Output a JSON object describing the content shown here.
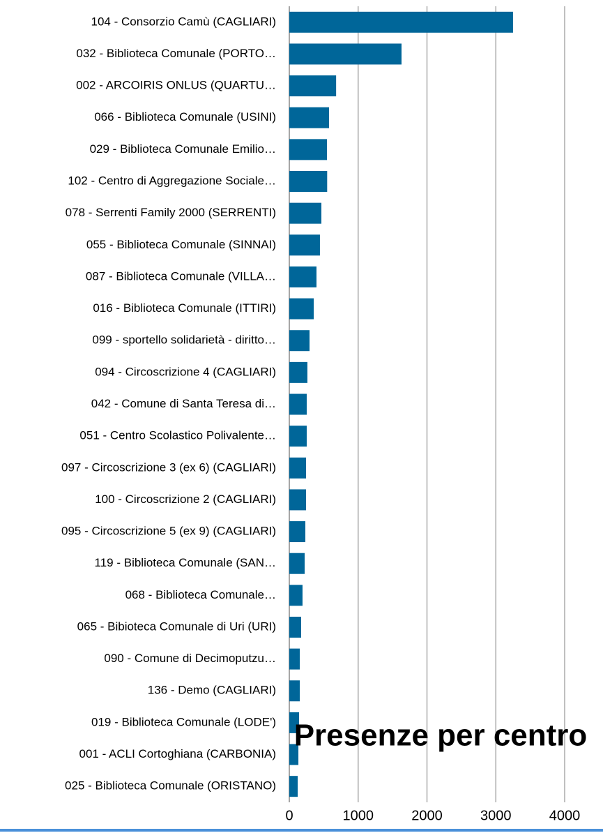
{
  "chart_data": {
    "type": "barh",
    "title": "Presenze per centro",
    "color": "#006699",
    "categories": [
      "104 - Consorzio Camù (CAGLIARI)",
      "032 - Biblioteca Comunale (PORTO…",
      "002 - ARCOIRIS ONLUS (QUARTU…",
      "066 - Biblioteca Comunale (USINI)",
      "029 - Biblioteca Comunale Emilio…",
      "102 - Centro di Aggregazione Sociale…",
      "078 - Serrenti Family 2000 (SERRENTI)",
      "055 - Biblioteca Comunale (SINNAI)",
      "087 - Biblioteca Comunale (VILLA…",
      "016 - Biblioteca Comunale (ITTIRI)",
      "099 - sportello solidarietà - diritto…",
      "094 - Circoscrizione 4 (CAGLIARI)",
      "042 - Comune di Santa Teresa di…",
      "051 - Centro Scolastico Polivalente…",
      "097 - Circoscrizione 3 (ex 6) (CAGLIARI)",
      "100 - Circoscrizione 2 (CAGLIARI)",
      "095 - Circoscrizione 5 (ex 9) (CAGLIARI)",
      "119 - Biblioteca Comunale (SAN…",
      "068 - Biblioteca Comunale…",
      "065 - Bibioteca Comunale di Uri (URI)",
      "090 - Comune di Decimoputzu…",
      "136 - Demo (CAGLIARI)",
      "019 - Biblioteca Comunale (LODE')",
      "001 - ACLI Cortoghiana (CARBONIA)",
      "025 - Biblioteca Comunale (ORISTANO)"
    ],
    "values": [
      3250,
      1630,
      680,
      577,
      547,
      550,
      466,
      445,
      395,
      355,
      294,
      263,
      253,
      253,
      243,
      243,
      233,
      223,
      192,
      172,
      152,
      152,
      142,
      132,
      122
    ],
    "xlim": [
      0,
      4000
    ],
    "xticks": [
      0,
      1000,
      2000,
      3000,
      4000
    ],
    "grid": true
  }
}
